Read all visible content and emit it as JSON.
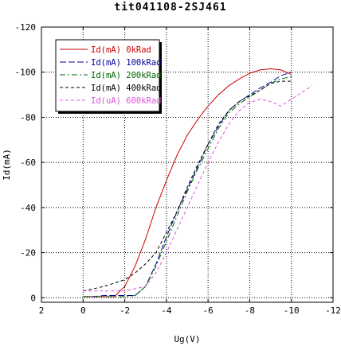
{
  "chart_data": {
    "type": "line",
    "title": "tit041108-2SJ461",
    "xlabel": "Ug(V)",
    "ylabel": "Id(mA)",
    "xlim": [
      2,
      -12
    ],
    "ylim": [
      2,
      -120
    ],
    "x_ticks": [
      2,
      0,
      -2,
      -4,
      -6,
      -8,
      -10,
      -12
    ],
    "x_tick_labels": [
      "2",
      "0",
      "-2",
      "-4",
      "-6",
      "-8",
      "-10",
      "-12"
    ],
    "y_ticks": [
      0,
      -20,
      -40,
      -60,
      -80,
      -100,
      -120
    ],
    "y_tick_labels": [
      "0",
      "-20",
      "-40",
      "-60",
      "-80",
      "-100",
      "-120"
    ],
    "grid": true,
    "legend_position": "top-left",
    "series": [
      {
        "name": "Id(mA) 0kRad",
        "color": "#cc0000",
        "dash": "solid",
        "x": [
          0,
          -1,
          -1.5,
          -2,
          -2.5,
          -3,
          -3.5,
          -4,
          -4.5,
          -5,
          -5.5,
          -6,
          -6.5,
          -7,
          -7.5,
          -8,
          -8.5,
          -9,
          -9.5,
          -10
        ],
        "y": [
          -0.5,
          -0.5,
          -0.5,
          -5,
          -14,
          -26,
          -40,
          -52,
          -63,
          -72,
          -79,
          -85,
          -90,
          -94,
          -97,
          -99.5,
          -101,
          -101.5,
          -101,
          -99
        ]
      },
      {
        "name": "Id(mA) 100kRad",
        "color": "#000099",
        "dash": "long-dash",
        "x": [
          0,
          -0.5,
          -1,
          -1.5,
          -2,
          -2.5,
          -3,
          -3.5,
          -4,
          -4.5,
          -5,
          -5.5,
          -6,
          -6.5,
          -7,
          -7.5,
          -8,
          -8.5,
          -9,
          -9.5,
          -10
        ],
        "y": [
          -0.5,
          -0.5,
          -1,
          -1,
          -1,
          -1,
          -5,
          -15,
          -27,
          -38,
          -48,
          -58,
          -68,
          -76,
          -83,
          -87,
          -90,
          -93,
          -95.5,
          -98.5,
          -100
        ]
      },
      {
        "name": "Id(mA) 200kRad",
        "color": "#006600",
        "dash": "dash-dot",
        "x": [
          0,
          -0.5,
          -1,
          -1.5,
          -2,
          -2.5,
          -3,
          -3.5,
          -4,
          -4.5,
          -5,
          -5.5,
          -6,
          -6.5,
          -7,
          -7.5,
          -8,
          -8.5,
          -9,
          -9.5,
          -10
        ],
        "y": [
          -0.5,
          -0.5,
          -0.5,
          -0.5,
          -0.5,
          -1,
          -5,
          -14,
          -25,
          -36,
          -47,
          -57,
          -66,
          -75,
          -82,
          -86,
          -89,
          -92,
          -95,
          -97,
          -98
        ]
      },
      {
        "name": "Id(mA) 400kRad",
        "color": "#000000",
        "dash": "short-dash",
        "x": [
          0,
          -1,
          -2,
          -2.5,
          -3,
          -3.5,
          -4,
          -4.5,
          -5,
          -5.5,
          -6,
          -6.5,
          -7,
          -7.5,
          -8,
          -8.5,
          -9,
          -9.5,
          -10
        ],
        "y": [
          -3,
          -5,
          -8,
          -11,
          -15,
          -20,
          -29,
          -38,
          -49,
          -59,
          -68,
          -77,
          -83,
          -87,
          -89.5,
          -92,
          -95,
          -96,
          -96
        ]
      },
      {
        "name": "Id(uA) 600kRad",
        "color": "#dd55dd",
        "dash": "short-dash",
        "x": [
          0,
          -1,
          -2,
          -3,
          -3.5,
          -4,
          -4.5,
          -5,
          -5.5,
          -6,
          -6.5,
          -7,
          -7.5,
          -8,
          -8.5,
          -9,
          -9.5,
          -10,
          -10.5,
          -11
        ],
        "y": [
          -3,
          -3,
          -3,
          -5,
          -11,
          -20,
          -30,
          -40,
          -50,
          -60,
          -69,
          -77,
          -83,
          -86.5,
          -88,
          -87,
          -85,
          -88,
          -91,
          -94
        ]
      }
    ]
  }
}
